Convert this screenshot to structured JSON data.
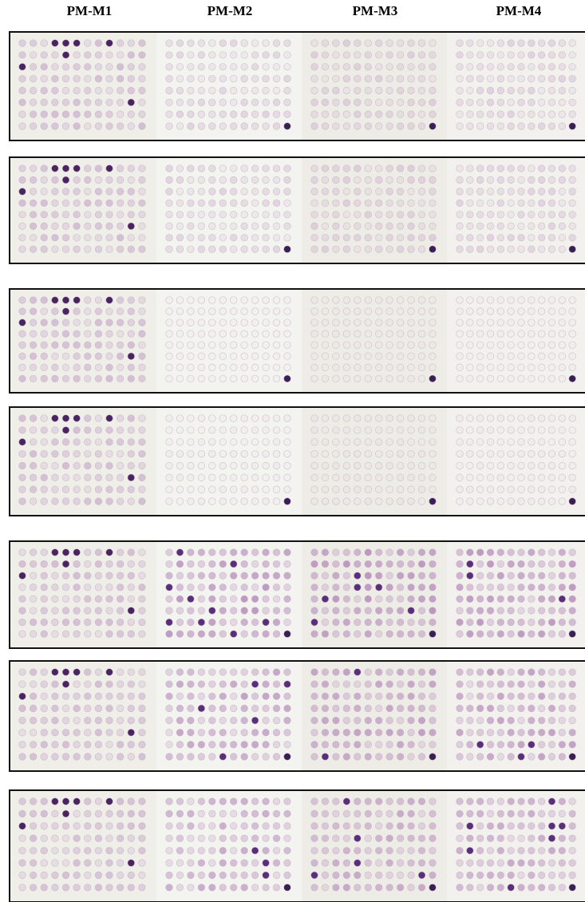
{
  "header": {
    "columns": [
      "PM-M1",
      "PM-M2",
      "PM-M3",
      "PM-M4"
    ]
  }
}
